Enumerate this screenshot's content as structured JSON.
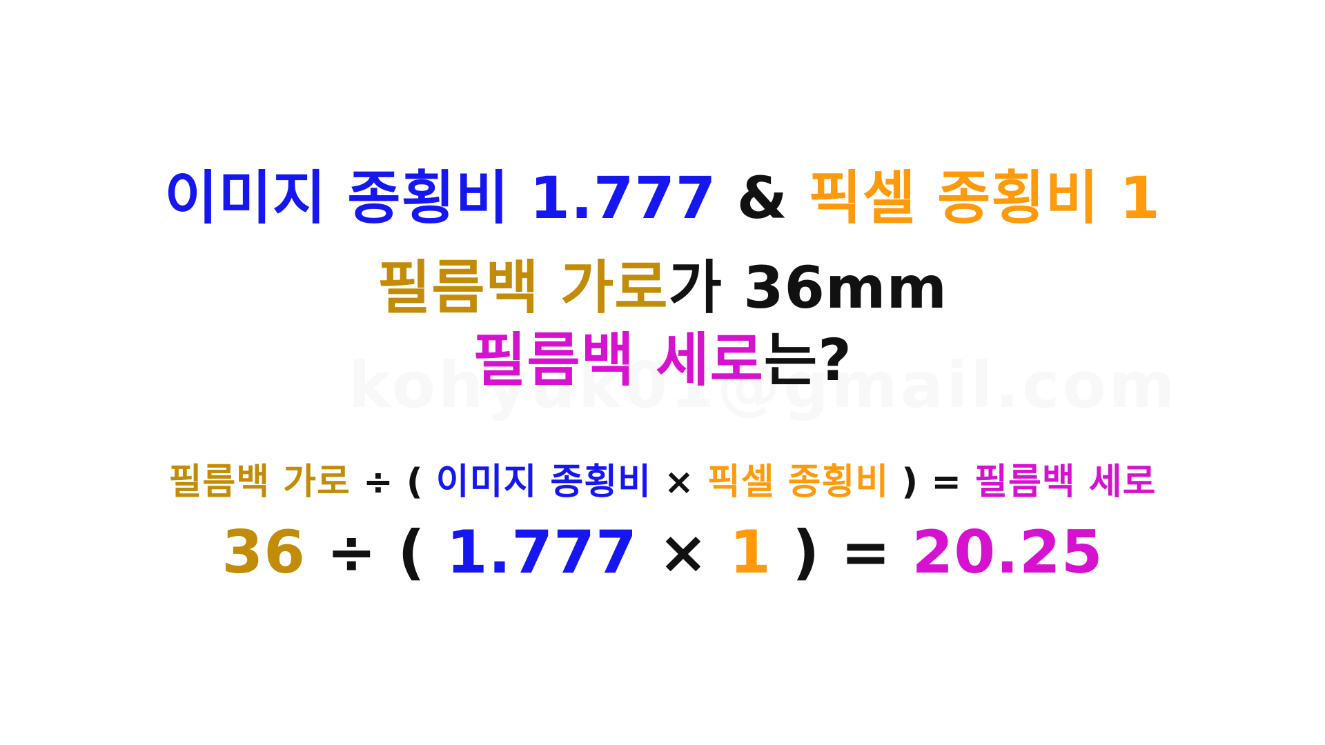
{
  "colors": {
    "blue": "#1616f0",
    "orange": "#ff9a0d",
    "gold": "#c28c09",
    "magenta": "#d611d0",
    "black": "#111111"
  },
  "watermark": "kohyuk01@gmail.com",
  "question": {
    "line1": {
      "image_ratio_label": "이미지 종횡비",
      "image_ratio_value": "1.777",
      "ampersand": "&",
      "pixel_ratio_label": "픽셀 종횡비",
      "pixel_ratio_value": "1"
    },
    "line2": {
      "film_width_label": "필름백 가로",
      "suffix": "가 36mm"
    },
    "line3": {
      "film_height_label": "필름백 세로",
      "suffix": "는?"
    }
  },
  "formula": {
    "film_width": "필름백 가로",
    "divide": "÷",
    "open_paren": "(",
    "image_ratio": "이미지 종횡비",
    "multiply": "×",
    "pixel_ratio": "픽셀 종횡비",
    "close_paren": ")",
    "equals": "=",
    "film_height": "필름백 세로"
  },
  "calculation": {
    "film_width": "36",
    "divide": "÷",
    "open_paren": "(",
    "image_ratio": "1.777",
    "multiply": "×",
    "pixel_ratio": "1",
    "close_paren": ")",
    "equals": "=",
    "result": "20.25"
  }
}
